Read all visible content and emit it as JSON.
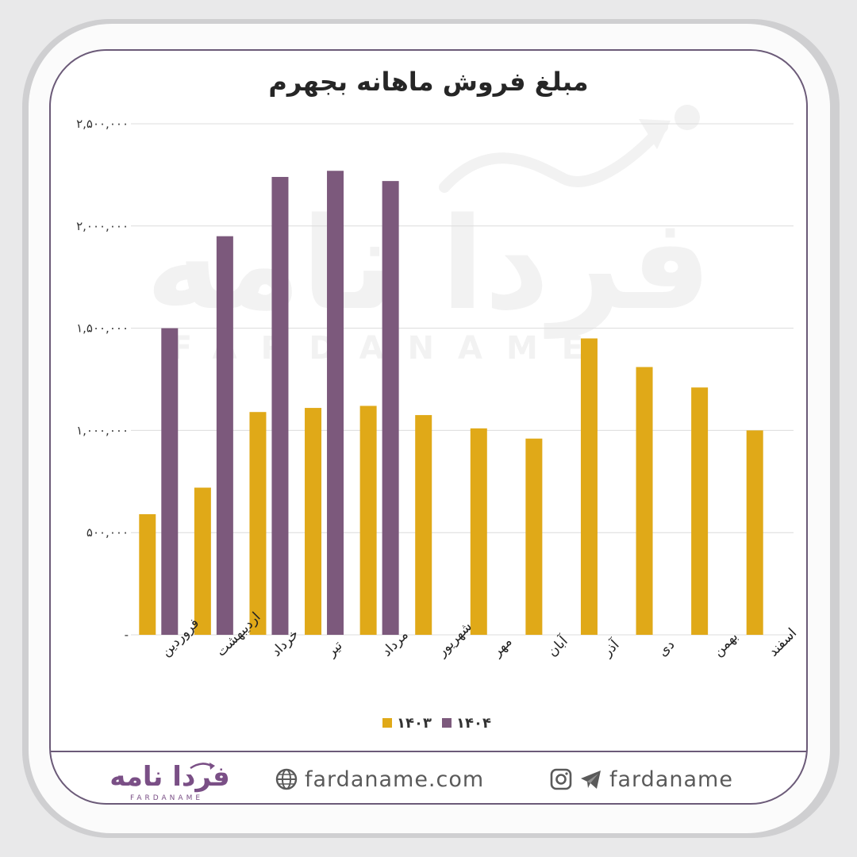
{
  "chart_data": {
    "type": "bar",
    "title": "مبلغ فروش ماهانه بجهرم",
    "categories": [
      "فروردین",
      "اردیبهشت",
      "خرداد",
      "تیر",
      "مرداد",
      "شهریور",
      "مهر",
      "آبان",
      "آذر",
      "دی",
      "بهمن",
      "اسفند"
    ],
    "series": [
      {
        "name": "۱۴۰۳",
        "color": "#e0a918",
        "values": [
          590000,
          720000,
          1090000,
          1110000,
          1120000,
          1075000,
          1010000,
          960000,
          1450000,
          1310000,
          1210000,
          1000000
        ]
      },
      {
        "name": "۱۴۰۴",
        "color": "#7c597c",
        "values": [
          1500000,
          1950000,
          2240000,
          2270000,
          2220000,
          null,
          null,
          null,
          null,
          null,
          null,
          null
        ]
      }
    ],
    "ylim": [
      0,
      2500000
    ],
    "yticks": [
      "-",
      "۵۰۰,۰۰۰",
      "۱,۰۰۰,۰۰۰",
      "۱,۵۰۰,۰۰۰",
      "۲,۰۰۰,۰۰۰",
      "۲,۵۰۰,۰۰۰"
    ],
    "grid": true,
    "legend_position": "bottom"
  },
  "watermark": {
    "brand": "فردا نامه",
    "latin": "FARDANAME"
  },
  "footer": {
    "logo_text": "فردا نامه",
    "logo_subtext": "FARDANAME",
    "website": "fardaname.com",
    "social_handle": "fardaname",
    "globe_icon": "globe-icon",
    "instagram_icon": "instagram-icon",
    "telegram_icon": "telegram-icon"
  }
}
